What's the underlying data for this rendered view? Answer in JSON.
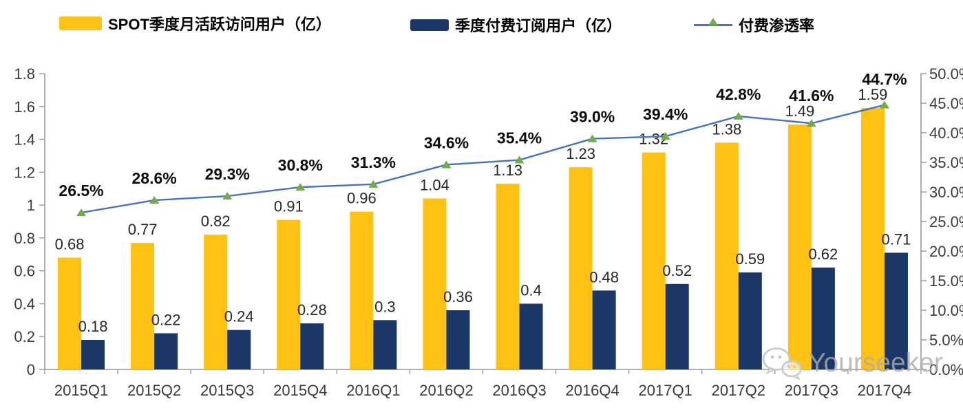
{
  "watermark": {
    "text": "Yourseeker",
    "icon": "wechat-icon"
  },
  "colors": {
    "mau_bar": "#FFC112",
    "subs_bar": "#1A3768",
    "penetration_line": "#4472C4",
    "penetration_marker": "#70AD47",
    "axis": "#999999",
    "watermark_gray": "#c8c8c8"
  },
  "chart_data": {
    "type": "combo-bar-line",
    "title": "",
    "legend_position": "top",
    "grid": false,
    "categories": [
      "2015Q1",
      "2015Q2",
      "2015Q3",
      "2015Q4",
      "2016Q1",
      "2016Q2",
      "2016Q3",
      "2016Q4",
      "2017Q1",
      "2017Q2",
      "2017Q3",
      "2017Q4"
    ],
    "series": [
      {
        "name": "SPOT季度月活跃访问用户（亿）",
        "type": "bar",
        "axis": "left",
        "color": "#FFC112",
        "values": [
          0.68,
          0.77,
          0.82,
          0.91,
          0.96,
          1.04,
          1.13,
          1.23,
          1.32,
          1.38,
          1.49,
          1.59
        ],
        "labels": [
          "0.68",
          "0.77",
          "0.82",
          "0.91",
          "0.96",
          "1.04",
          "1.13",
          "1.23",
          "1.32",
          "1.38",
          "1.49",
          "1.59"
        ]
      },
      {
        "name": "季度付费订阅用户（亿）",
        "type": "bar",
        "axis": "left",
        "color": "#1A3768",
        "values": [
          0.18,
          0.22,
          0.24,
          0.28,
          0.3,
          0.36,
          0.4,
          0.48,
          0.52,
          0.59,
          0.62,
          0.71
        ],
        "labels": [
          "0.18",
          "0.22",
          "0.24",
          "0.28",
          "0.3",
          "0.36",
          "0.4",
          "0.48",
          "0.52",
          "0.59",
          "0.62",
          "0.71"
        ]
      },
      {
        "name": "付费渗透率",
        "type": "line",
        "axis": "right",
        "color": "#4472C4",
        "marker_color": "#70AD47",
        "values": [
          26.5,
          28.6,
          29.3,
          30.8,
          31.3,
          34.6,
          35.4,
          39.0,
          39.4,
          42.8,
          41.6,
          44.7
        ],
        "labels": [
          "26.5%",
          "28.6%",
          "29.3%",
          "30.8%",
          "31.3%",
          "34.6%",
          "35.4%",
          "39.0%",
          "39.4%",
          "42.8%",
          "41.6%",
          "44.7%"
        ]
      }
    ],
    "left_axis": {
      "min": 0,
      "max": 1.8,
      "step": 0.2,
      "tick_labels": [
        "0",
        "0.2",
        "0.4",
        "0.6",
        "0.8",
        "1",
        "1.2",
        "1.4",
        "1.6",
        "1.8"
      ]
    },
    "right_axis": {
      "min": 0,
      "max": 50,
      "step": 5,
      "tick_labels": [
        "0.0%",
        "5.0%",
        "10.0%",
        "15.0%",
        "20.0%",
        "25.0%",
        "30.0%",
        "35.0%",
        "40.0%",
        "45.0%",
        "50.0%"
      ]
    }
  }
}
